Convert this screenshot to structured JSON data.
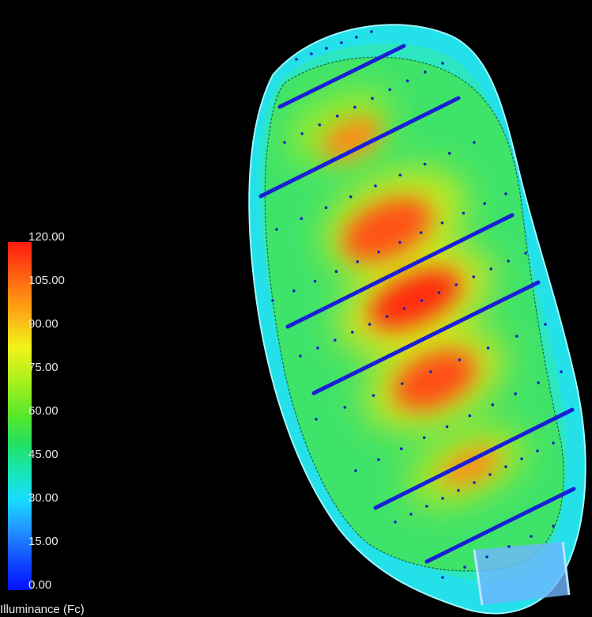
{
  "legend": {
    "title": "Illuminance (Fc)",
    "ticks": [
      "120.00",
      "105.00",
      "90.00",
      "75.00",
      "60.00",
      "45.00",
      "30.00",
      "15.00",
      "0.00"
    ],
    "min": 0,
    "max": 120
  },
  "colors": {
    "background": "#000000",
    "fixture_line": "#1a1fd6",
    "max": "#ff1a10",
    "min": "#0010ff"
  }
}
